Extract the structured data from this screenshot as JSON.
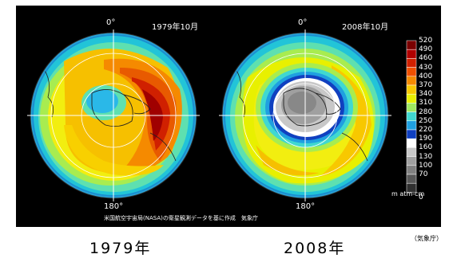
{
  "maps": [
    {
      "date": "1979年10月",
      "top_label": "0°",
      "bottom_label": "180°",
      "year_caption": "1979年"
    },
    {
      "date": "2008年10月",
      "top_label": "0°",
      "bottom_label": "180°",
      "year_caption": "2008年"
    }
  ],
  "legend": {
    "ticks": [
      "520",
      "490",
      "460",
      "430",
      "400",
      "370",
      "340",
      "310",
      "280",
      "250",
      "220",
      "190",
      "160",
      "130",
      "100",
      "70",
      "0"
    ],
    "colors": [
      "#7a0000",
      "#b00000",
      "#d02000",
      "#f05000",
      "#f58a00",
      "#f8c800",
      "#e8f000",
      "#9ee860",
      "#40d8d0",
      "#1fa0e0",
      "#1040c0",
      "#ffffff",
      "#c8c8c8",
      "#a0a0a0",
      "#808080",
      "#585858",
      "#303030"
    ],
    "unit": "m atm-cm"
  },
  "credit": "米国航空宇宙局(NASA)の衛星観測データを基に作成　気象庁",
  "source_note": "（気象庁）"
}
